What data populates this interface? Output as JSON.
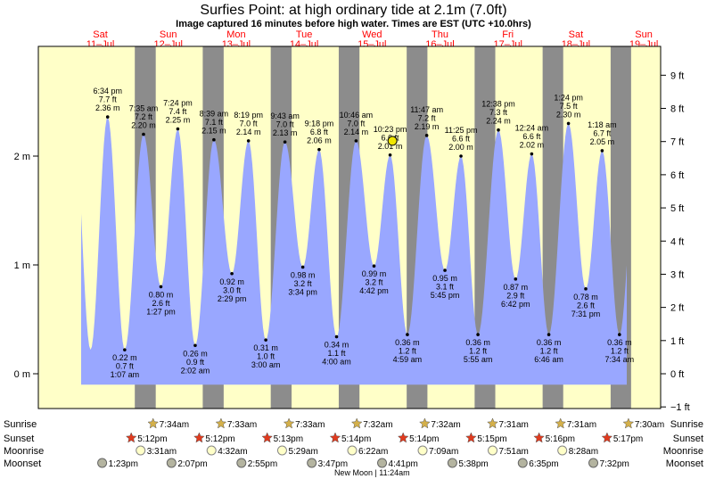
{
  "chart_data": {
    "type": "area",
    "title": "Surfies Point: at high  ordinary tide at 2.1m (7.0ft)",
    "subtitle": "Image captured 16 minutes before high water. Times are EST (UTC +10.0hrs)",
    "colors": {
      "tide": "#99a7ff",
      "day": "#ffffc8",
      "night": "#8c8c8c",
      "red": "#ff0000",
      "star": "#d4b04a",
      "sunset_star": "#e03a1e",
      "moon": "#ffffc8",
      "moonset": "#b4b4a0"
    },
    "days": [
      {
        "name": "Sat",
        "date": "11–Jul"
      },
      {
        "name": "Sun",
        "date": "12–Jul"
      },
      {
        "name": "Mon",
        "date": "13–Jul"
      },
      {
        "name": "Tue",
        "date": "14–Jul"
      },
      {
        "name": "Wed",
        "date": "15–Jul"
      },
      {
        "name": "Thu",
        "date": "16–Jul"
      },
      {
        "name": "Fri",
        "date": "17–Jul"
      },
      {
        "name": "Sat",
        "date": "18–Jul"
      },
      {
        "name": "Sun",
        "date": "19–Jul"
      }
    ],
    "y_left_ticks": [
      {
        "v": 0,
        "label": "0 m"
      },
      {
        "v": 1,
        "label": "1 m"
      },
      {
        "v": 2,
        "label": "2 m"
      }
    ],
    "y_right_ticks": [
      {
        "ft": -1,
        "label": "−1 ft"
      },
      {
        "ft": 0,
        "label": "0 ft"
      },
      {
        "ft": 1,
        "label": "1 ft"
      },
      {
        "ft": 2,
        "label": "2 ft"
      },
      {
        "ft": 3,
        "label": "3 ft"
      },
      {
        "ft": 4,
        "label": "4 ft"
      },
      {
        "ft": 5,
        "label": "5 ft"
      },
      {
        "ft": 6,
        "label": "6 ft"
      },
      {
        "ft": 7,
        "label": "7 ft"
      },
      {
        "ft": 8,
        "label": "8 ft"
      },
      {
        "ft": 9,
        "label": "9 ft"
      }
    ],
    "ylim_m": [
      -0.28,
      3.0
    ],
    "current_marker": {
      "day": 4.3,
      "value": 2.14
    },
    "tides": [
      {
        "kind": "high",
        "day": 0.108,
        "time": "6:34 pm",
        "m": 2.36,
        "ft": "7.7 ft",
        "label": "2.36 m"
      },
      {
        "kind": "low",
        "day": 0.359,
        "time": "1:07 am",
        "m": 0.22,
        "ft": "0.7 ft",
        "label": "0.22 m"
      },
      {
        "kind": "high",
        "day": 0.636,
        "time": "7:35 am",
        "m": 2.2,
        "ft": "7.2 ft",
        "label": "2.20 m"
      },
      {
        "kind": "low",
        "day": 0.892,
        "time": "1:27 pm",
        "m": 0.8,
        "ft": "2.6 ft",
        "label": "0.80 m"
      },
      {
        "kind": "high",
        "day": 1.141,
        "time": "7:24 pm",
        "m": 2.25,
        "ft": "7.4 ft",
        "label": "2.25 m"
      },
      {
        "kind": "low",
        "day": 1.397,
        "time": "2:02 am",
        "m": 0.26,
        "ft": "0.9 ft",
        "label": "0.26 m"
      },
      {
        "kind": "high",
        "day": 1.672,
        "time": "8:39 am",
        "m": 2.15,
        "ft": "7.1 ft",
        "label": "2.15 m"
      },
      {
        "kind": "low",
        "day": 1.937,
        "time": "2:29 pm",
        "m": 0.92,
        "ft": "3.0 ft",
        "label": "0.92 m"
      },
      {
        "kind": "high",
        "day": 2.181,
        "time": "8:19 pm",
        "m": 2.14,
        "ft": "7.0 ft",
        "label": "2.14 m"
      },
      {
        "kind": "low",
        "day": 2.436,
        "time": "3:00 am",
        "m": 0.31,
        "ft": "1.0 ft",
        "label": "0.31 m"
      },
      {
        "kind": "high",
        "day": 2.718,
        "time": "9:43 am",
        "m": 2.13,
        "ft": "7.0 ft",
        "label": "2.13 m"
      },
      {
        "kind": "low",
        "day": 2.981,
        "time": "3:34 pm",
        "m": 0.98,
        "ft": "3.2 ft",
        "label": "0.98 m"
      },
      {
        "kind": "high",
        "day": 3.221,
        "time": "9:18 pm",
        "m": 2.06,
        "ft": "6.8 ft",
        "label": "2.06 m"
      },
      {
        "kind": "low",
        "day": 3.478,
        "time": "4:00 am",
        "m": 0.34,
        "ft": "1.1 ft",
        "label": "0.34 m"
      },
      {
        "kind": "high",
        "day": 3.765,
        "time": "10:46 am",
        "m": 2.14,
        "ft": "7.0 ft",
        "label": "2.14 m"
      },
      {
        "kind": "low",
        "day": 4.029,
        "time": "4:42 pm",
        "m": 0.99,
        "ft": "3.2 ft",
        "label": "0.99 m"
      },
      {
        "kind": "high",
        "day": 4.266,
        "time": "10:23 pm",
        "m": 2.01,
        "ft": "6.6 ft",
        "label": "2.01 m"
      },
      {
        "kind": "low",
        "day": 4.52,
        "time": "4:59 am",
        "m": 0.36,
        "ft": "1.2 ft",
        "label": "0.36 m"
      },
      {
        "kind": "high",
        "day": 4.805,
        "time": "11:47 am",
        "m": 2.19,
        "ft": "7.2 ft",
        "label": "2.19 m"
      },
      {
        "kind": "low",
        "day": 5.073,
        "time": "5:45 pm",
        "m": 0.95,
        "ft": "3.1 ft",
        "label": "0.95 m"
      },
      {
        "kind": "high",
        "day": 5.309,
        "time": "11:25 pm",
        "m": 2.0,
        "ft": "6.6 ft",
        "label": "2.00 m"
      },
      {
        "kind": "low",
        "day": 5.559,
        "time": "5:55 am",
        "m": 0.36,
        "ft": "1.2 ft",
        "label": "0.36 m"
      },
      {
        "kind": "high",
        "day": 5.86,
        "time": "12:38 pm",
        "m": 2.24,
        "ft": "7.3 ft",
        "label": "2.24 m"
      },
      {
        "kind": "low",
        "day": 6.113,
        "time": "6:42 pm",
        "m": 0.87,
        "ft": "2.9 ft",
        "label": "0.87 m"
      },
      {
        "kind": "high",
        "day": 6.35,
        "time": "12:24 am",
        "m": 2.02,
        "ft": "6.6 ft",
        "label": "2.02 m"
      },
      {
        "kind": "low",
        "day": 6.602,
        "time": "6:46 am",
        "m": 0.36,
        "ft": "1.2 ft",
        "label": "0.36 m"
      },
      {
        "kind": "high",
        "day": 6.891,
        "time": "1:24 pm",
        "m": 2.3,
        "ft": "7.5 ft",
        "label": "2.30 m"
      },
      {
        "kind": "low",
        "day": 7.146,
        "time": "7:31 pm",
        "m": 0.78,
        "ft": "2.6 ft",
        "label": "0.78 m"
      },
      {
        "kind": "high",
        "day": 7.387,
        "time": "1:18 am",
        "m": 2.05,
        "ft": "6.7 ft",
        "label": "2.05 m"
      },
      {
        "kind": "low",
        "day": 7.642,
        "time": "7:34 am",
        "m": 0.36,
        "ft": "1.2 ft",
        "label": "0.36 m"
      }
    ],
    "row_labels": {
      "sunrise": "Sunrise",
      "sunset": "Sunset",
      "moonrise": "Moonrise",
      "moonset": "Moonset"
    },
    "sunrise": [
      {
        "day": 0.816,
        "label": "7:34am"
      },
      {
        "day": 1.816,
        "label": "7:33am"
      },
      {
        "day": 2.816,
        "label": "7:33am"
      },
      {
        "day": 3.815,
        "label": "7:32am"
      },
      {
        "day": 4.815,
        "label": "7:32am"
      },
      {
        "day": 5.814,
        "label": "7:31am"
      },
      {
        "day": 6.814,
        "label": "7:31am"
      },
      {
        "day": 7.813,
        "label": "7:30am"
      }
    ],
    "sunset": [
      {
        "day": 0.508,
        "label": "5:12pm"
      },
      {
        "day": 1.508,
        "label": "5:12pm"
      },
      {
        "day": 2.509,
        "label": "5:13pm"
      },
      {
        "day": 3.51,
        "label": "5:14pm"
      },
      {
        "day": 4.51,
        "label": "5:14pm"
      },
      {
        "day": 5.51,
        "label": "5:15pm"
      },
      {
        "day": 6.511,
        "label": "5:16pm"
      },
      {
        "day": 7.512,
        "label": "5:17pm"
      }
    ],
    "moonrise": [
      {
        "day": 0.646,
        "label": "3:31am"
      },
      {
        "day": 1.689,
        "label": "4:32am"
      },
      {
        "day": 2.729,
        "label": "5:29am"
      },
      {
        "day": 3.76,
        "label": "6:22am"
      },
      {
        "day": 4.797,
        "label": "7:09am"
      },
      {
        "day": 5.827,
        "label": "7:51am"
      },
      {
        "day": 6.853,
        "label": "8:28am"
      }
    ],
    "moonset": [
      {
        "day": 0.08,
        "label": "1:23pm"
      },
      {
        "day": 1.1,
        "label": "2:07pm"
      },
      {
        "day": 2.13,
        "label": "2:55pm"
      },
      {
        "day": 3.165,
        "label": "3:47pm"
      },
      {
        "day": 4.2,
        "label": "4:41pm"
      },
      {
        "day": 5.235,
        "label": "5:38pm"
      },
      {
        "day": 6.27,
        "label": "6:35pm"
      },
      {
        "day": 7.31,
        "label": "7:32pm"
      }
    ],
    "moon_note": "New Moon | 11:24am"
  }
}
